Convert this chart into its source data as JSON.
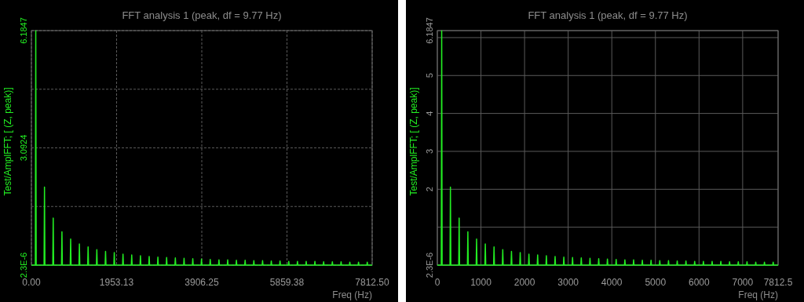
{
  "chart_data": [
    {
      "type": "line",
      "title": "FFT analysis 1 (peak, df = 9.77 Hz)",
      "xlabel": "Freq (Hz)",
      "ylabel": "Test/AmplFFT; [ (Z, peak)]",
      "xlim": [
        0,
        7812.5
      ],
      "ylim": [
        0,
        6.1847
      ],
      "xticks": [
        {
          "value": 0,
          "label": "0.00"
        },
        1953.13,
        3906.25,
        5859.38,
        {
          "value": 7812.5,
          "label": "7812.50"
        }
      ],
      "yticks": [
        {
          "value": 2.3e-06,
          "label": "2.3E-6"
        },
        {
          "value": 1.5462,
          "label": null
        },
        3.0924,
        {
          "value": 4.6386,
          "label": null
        },
        6.1847
      ],
      "grid": true,
      "series": [
        {
          "color": "#22ee22",
          "x": [
            0,
            90,
            100,
            110,
            290,
            300,
            310,
            490,
            500,
            510,
            690,
            700,
            710,
            890,
            900,
            910,
            1090,
            1100,
            1110,
            1290,
            1300,
            1310,
            1490,
            1500,
            1510,
            1690,
            1700,
            1710,
            1890,
            1900,
            1910,
            2090,
            2100,
            2110,
            2290,
            2300,
            2310,
            2490,
            2500,
            2510,
            2690,
            2700,
            2710,
            2890,
            2900,
            2910,
            3090,
            3100,
            3110,
            3290,
            3300,
            3310,
            3490,
            3500,
            3510,
            3690,
            3700,
            3710,
            3890,
            3900,
            3910,
            4090,
            4100,
            4110,
            4290,
            4300,
            4310,
            4490,
            4500,
            4510,
            4690,
            4700,
            4710,
            4890,
            4900,
            4910,
            5090,
            5100,
            5110,
            5290,
            5300,
            5310,
            5490,
            5500,
            5510,
            5690,
            5700,
            5710,
            5890,
            5900,
            5910,
            6090,
            6100,
            6110,
            6290,
            6300,
            6310,
            6490,
            6500,
            6510,
            6690,
            6700,
            6710,
            6890,
            6900,
            6910,
            7090,
            7100,
            7110,
            7290,
            7300,
            7310,
            7490,
            7500,
            7510,
            7690,
            7700,
            7710,
            7812.5
          ],
          "values": [
            0,
            0,
            6.18,
            0,
            0,
            2.06,
            0,
            0,
            1.24,
            0,
            0,
            0.88,
            0,
            0,
            0.69,
            0,
            0,
            0.56,
            0,
            0,
            0.48,
            0,
            0,
            0.41,
            0,
            0,
            0.36,
            0,
            0,
            0.33,
            0,
            0,
            0.29,
            0,
            0,
            0.27,
            0,
            0,
            0.25,
            0,
            0,
            0.23,
            0,
            0,
            0.21,
            0,
            0,
            0.2,
            0,
            0,
            0.19,
            0,
            0,
            0.18,
            0,
            0,
            0.17,
            0,
            0,
            0.16,
            0,
            0,
            0.15,
            0,
            0,
            0.14,
            0,
            0,
            0.14,
            0,
            0,
            0.13,
            0,
            0,
            0.13,
            0,
            0,
            0.12,
            0,
            0,
            0.12,
            0,
            0,
            0.11,
            0,
            0,
            0.11,
            0,
            0,
            0.1,
            0,
            0,
            0.1,
            0,
            0,
            0.1,
            0,
            0,
            0.1,
            0,
            0,
            0.09,
            0,
            0,
            0.09,
            0,
            0,
            0.09,
            0,
            0,
            0.08,
            0,
            0,
            0.08,
            0,
            0,
            0.08,
            0,
            0
          ]
        }
      ]
    },
    {
      "type": "line",
      "title": "FFT analysis 1 (peak, df = 9.77 Hz)",
      "xlabel": "Freq (Hz)",
      "ylabel": "Test/AmplFFT; [ (Z, peak)]",
      "xlim": [
        0,
        7812.5
      ],
      "ylim": [
        0,
        6.1847
      ],
      "xticks": [
        0,
        1000,
        2000,
        3000,
        4000,
        5000,
        6000,
        7000,
        7812.5
      ],
      "yticks": [
        {
          "value": 2.3e-06,
          "label": "2.3E-6"
        },
        {
          "value": 1,
          "label": null
        },
        2,
        3,
        4,
        5,
        {
          "value": 6,
          "label": null
        },
        6.1847
      ],
      "grid": true,
      "series": [
        {
          "color": "#22ee22",
          "x": [
            0,
            90,
            100,
            110,
            290,
            300,
            310,
            490,
            500,
            510,
            690,
            700,
            710,
            890,
            900,
            910,
            1090,
            1100,
            1110,
            1290,
            1300,
            1310,
            1490,
            1500,
            1510,
            1690,
            1700,
            1710,
            1890,
            1900,
            1910,
            2090,
            2100,
            2110,
            2290,
            2300,
            2310,
            2490,
            2500,
            2510,
            2690,
            2700,
            2710,
            2890,
            2900,
            2910,
            3090,
            3100,
            3110,
            3290,
            3300,
            3310,
            3490,
            3500,
            3510,
            3690,
            3700,
            3710,
            3890,
            3900,
            3910,
            4090,
            4100,
            4110,
            4290,
            4300,
            4310,
            4490,
            4500,
            4510,
            4690,
            4700,
            4710,
            4890,
            4900,
            4910,
            5090,
            5100,
            5110,
            5290,
            5300,
            5310,
            5490,
            5500,
            5510,
            5690,
            5700,
            5710,
            5890,
            5900,
            5910,
            6090,
            6100,
            6110,
            6290,
            6300,
            6310,
            6490,
            6500,
            6510,
            6690,
            6700,
            6710,
            6890,
            6900,
            6910,
            7090,
            7100,
            7110,
            7290,
            7300,
            7310,
            7490,
            7500,
            7510,
            7690,
            7700,
            7710,
            7812.5
          ],
          "values": [
            0,
            0,
            6.18,
            0,
            0,
            2.06,
            0,
            0,
            1.24,
            0,
            0,
            0.88,
            0,
            0,
            0.69,
            0,
            0,
            0.56,
            0,
            0,
            0.48,
            0,
            0,
            0.41,
            0,
            0,
            0.36,
            0,
            0,
            0.33,
            0,
            0,
            0.29,
            0,
            0,
            0.27,
            0,
            0,
            0.25,
            0,
            0,
            0.23,
            0,
            0,
            0.21,
            0,
            0,
            0.2,
            0,
            0,
            0.19,
            0,
            0,
            0.18,
            0,
            0,
            0.17,
            0,
            0,
            0.16,
            0,
            0,
            0.15,
            0,
            0,
            0.14,
            0,
            0,
            0.14,
            0,
            0,
            0.13,
            0,
            0,
            0.13,
            0,
            0,
            0.12,
            0,
            0,
            0.12,
            0,
            0,
            0.11,
            0,
            0,
            0.11,
            0,
            0,
            0.1,
            0,
            0,
            0.1,
            0,
            0,
            0.1,
            0,
            0,
            0.1,
            0,
            0,
            0.09,
            0,
            0,
            0.09,
            0,
            0,
            0.09,
            0,
            0,
            0.08,
            0,
            0,
            0.08,
            0,
            0,
            0.08,
            0,
            0
          ]
        }
      ]
    }
  ]
}
